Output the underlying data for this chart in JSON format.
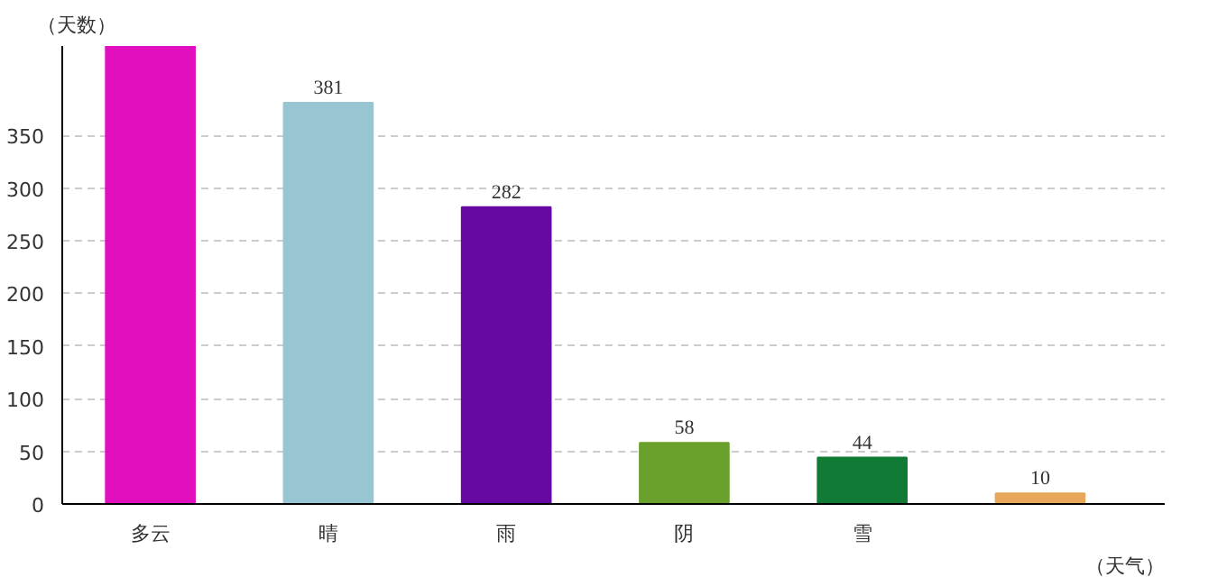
{
  "chart_data": {
    "type": "bar",
    "xlabel": "（天气）",
    "ylabel": "（天数）",
    "categories": [
      "多云",
      "晴",
      "雨",
      "阴",
      "雪",
      null
    ],
    "values": [
      435,
      381,
      282,
      58,
      44,
      10
    ],
    "value_labels": [
      null,
      "381",
      "282",
      "58",
      "44",
      "10"
    ],
    "colors": [
      "#e10fbd",
      "#98c5d2",
      "#6609a3",
      "#6aa12d",
      "#117a34",
      "#e9a75c"
    ],
    "ylim": [
      0,
      435
    ],
    "yticks": [
      0,
      50,
      100,
      150,
      200,
      250,
      300,
      350
    ],
    "grid": "y"
  }
}
